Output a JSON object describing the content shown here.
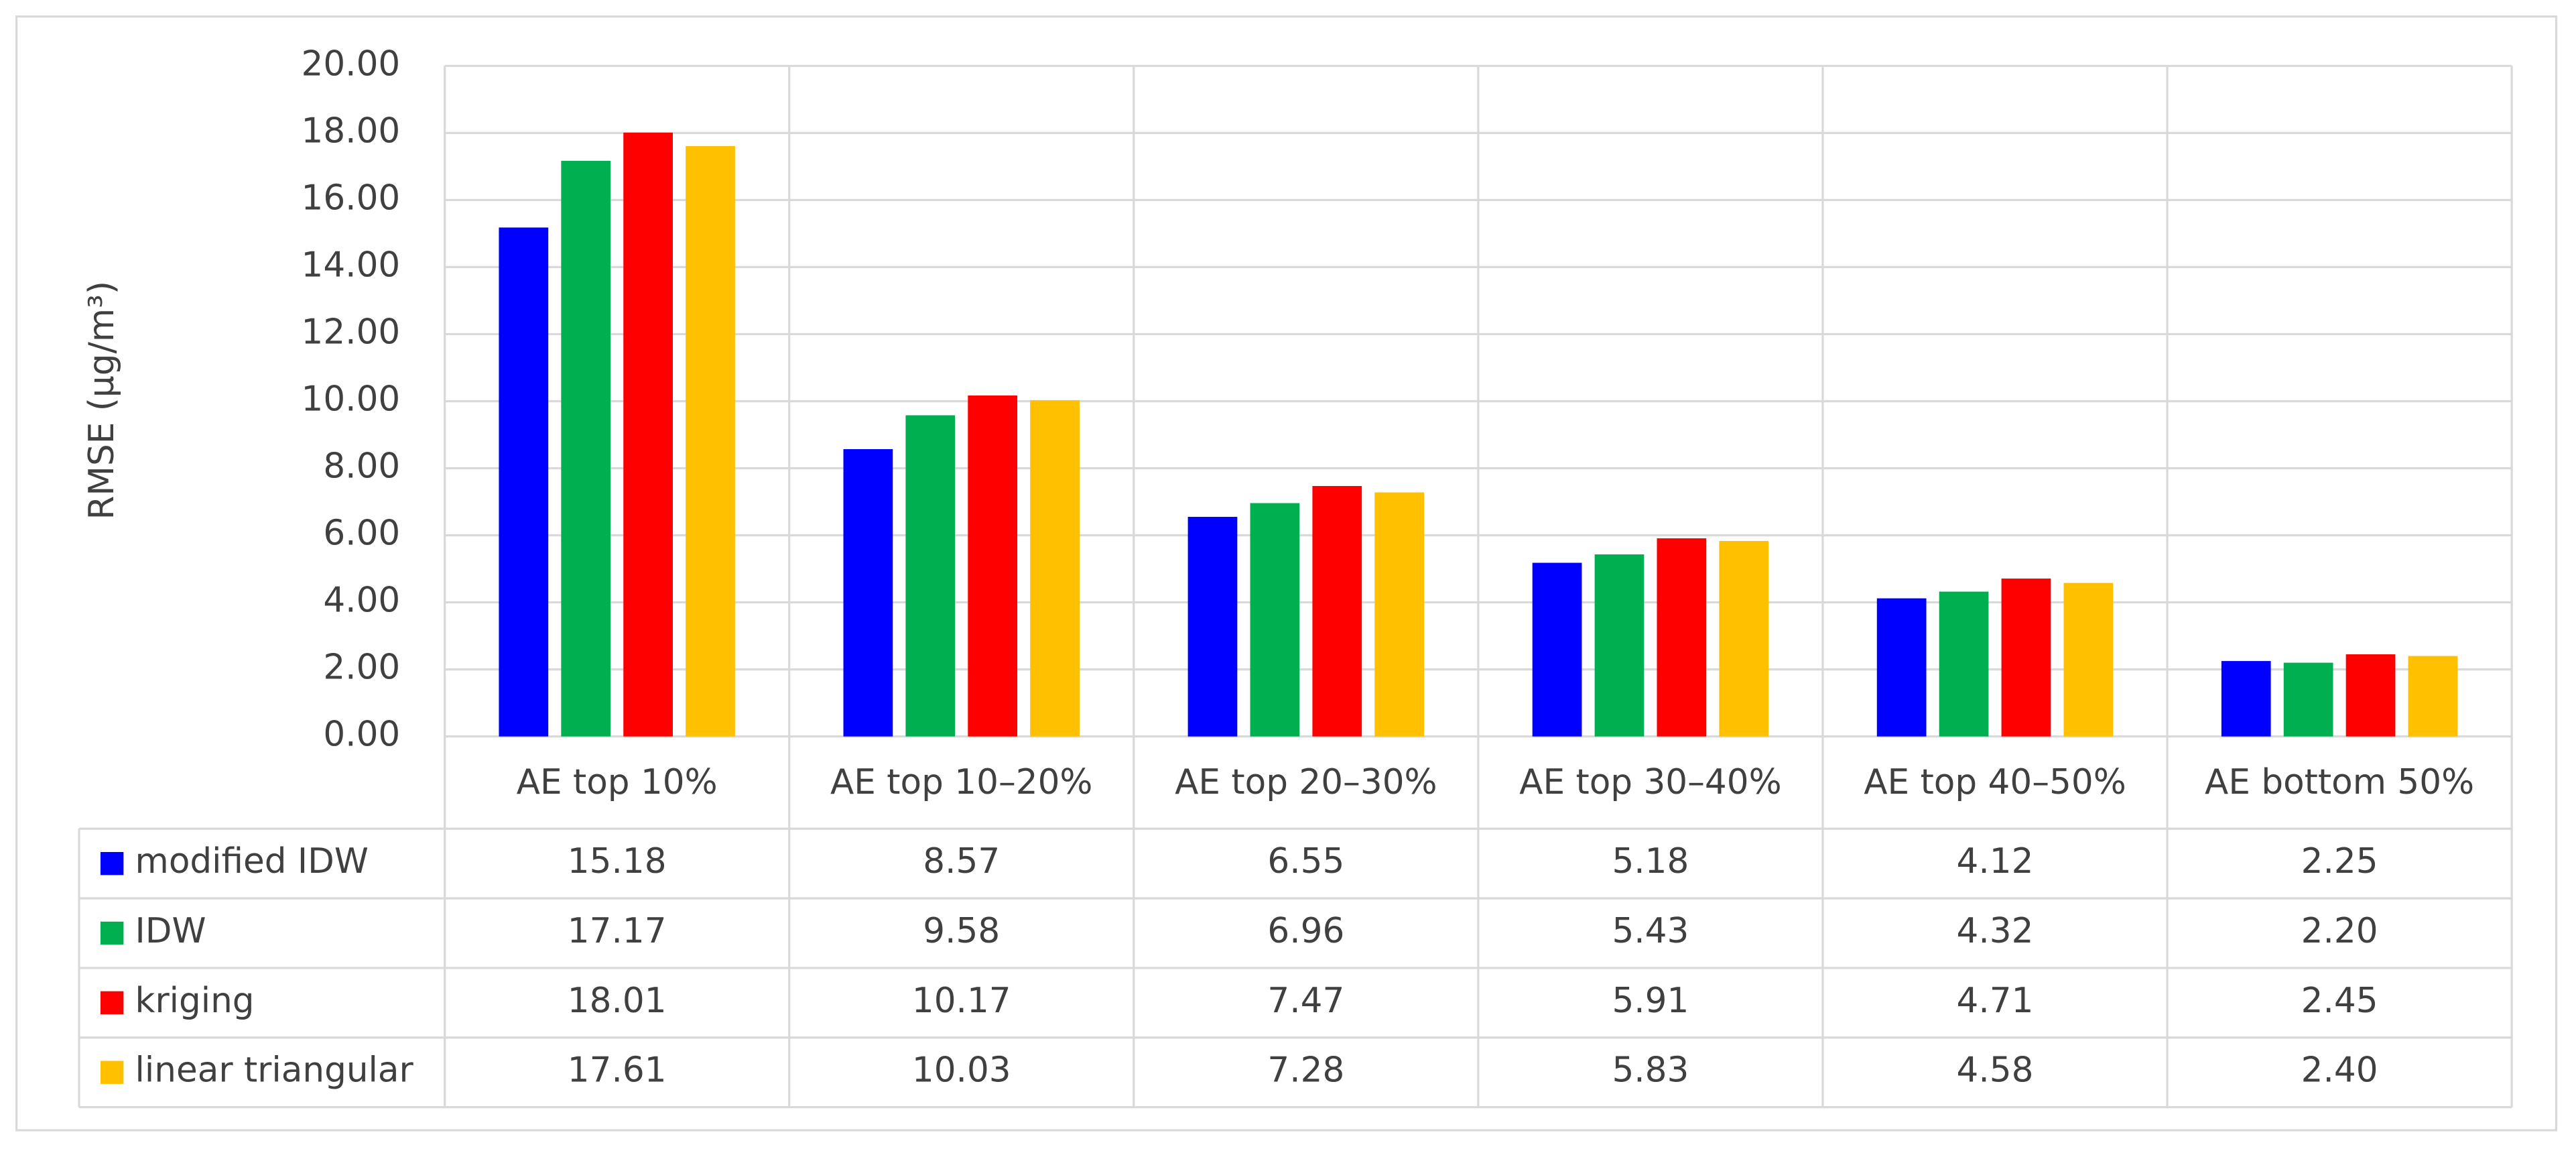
{
  "chart_data": {
    "type": "bar",
    "y_label": "RMSE (μg/m³)",
    "categories": [
      "AE top 10%",
      "AE top 10–20%",
      "AE top 20–30%",
      "AE top 30–40%",
      "AE top 40–50%",
      "AE bottom 50%"
    ],
    "series": [
      {
        "name": "modified IDW",
        "color": "#0000ff",
        "values": [
          15.18,
          8.57,
          6.55,
          5.18,
          4.12,
          2.25
        ],
        "value_labels": [
          "15.18",
          "8.57",
          "6.55",
          "5.18",
          "4.12",
          "2.25"
        ]
      },
      {
        "name": "IDW",
        "color": "#00b050",
        "values": [
          17.17,
          9.58,
          6.96,
          5.43,
          4.32,
          2.2
        ],
        "value_labels": [
          "17.17",
          "9.58",
          "6.96",
          "5.43",
          "4.32",
          "2.20"
        ]
      },
      {
        "name": "kriging",
        "color": "#ff0000",
        "values": [
          18.01,
          10.17,
          7.47,
          5.91,
          4.71,
          2.45
        ],
        "value_labels": [
          "18.01",
          "10.17",
          "7.47",
          "5.91",
          "4.71",
          "2.45"
        ]
      },
      {
        "name": "linear triangular",
        "color": "#ffc000",
        "values": [
          17.61,
          10.03,
          7.28,
          5.83,
          4.58,
          2.4
        ],
        "value_labels": [
          "17.61",
          "10.03",
          "7.28",
          "5.83",
          "4.58",
          "2.40"
        ]
      }
    ],
    "ylim": [
      0,
      20
    ],
    "yticks": [
      {
        "value": 0,
        "label": "0.00"
      },
      {
        "value": 2,
        "label": "2.00"
      },
      {
        "value": 4,
        "label": "4.00"
      },
      {
        "value": 6,
        "label": "6.00"
      },
      {
        "value": 8,
        "label": "8.00"
      },
      {
        "value": 10,
        "label": "10.00"
      },
      {
        "value": 12,
        "label": "12.00"
      },
      {
        "value": 14,
        "label": "14.00"
      },
      {
        "value": 16,
        "label": "16.00"
      },
      {
        "value": 18,
        "label": "18.00"
      },
      {
        "value": 20,
        "label": "20.00"
      }
    ],
    "grid": true
  }
}
